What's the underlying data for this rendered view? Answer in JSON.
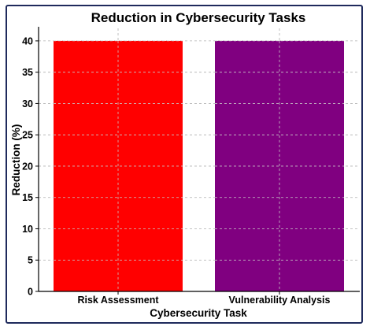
{
  "chart_data": {
    "type": "bar",
    "title": "Reduction in Cybersecurity Tasks",
    "xlabel": "Cybersecurity Task",
    "ylabel": "Reduction (%)",
    "categories": [
      "Risk Assessment",
      "Vulnerability Analysis"
    ],
    "values": [
      40,
      40
    ],
    "colors": [
      "#ff0000",
      "#800080"
    ],
    "ylim": [
      0,
      42
    ],
    "yticks": [
      0,
      5,
      10,
      15,
      20,
      25,
      30,
      35,
      40
    ],
    "grid": true,
    "border_color": "#1f2a5c"
  }
}
